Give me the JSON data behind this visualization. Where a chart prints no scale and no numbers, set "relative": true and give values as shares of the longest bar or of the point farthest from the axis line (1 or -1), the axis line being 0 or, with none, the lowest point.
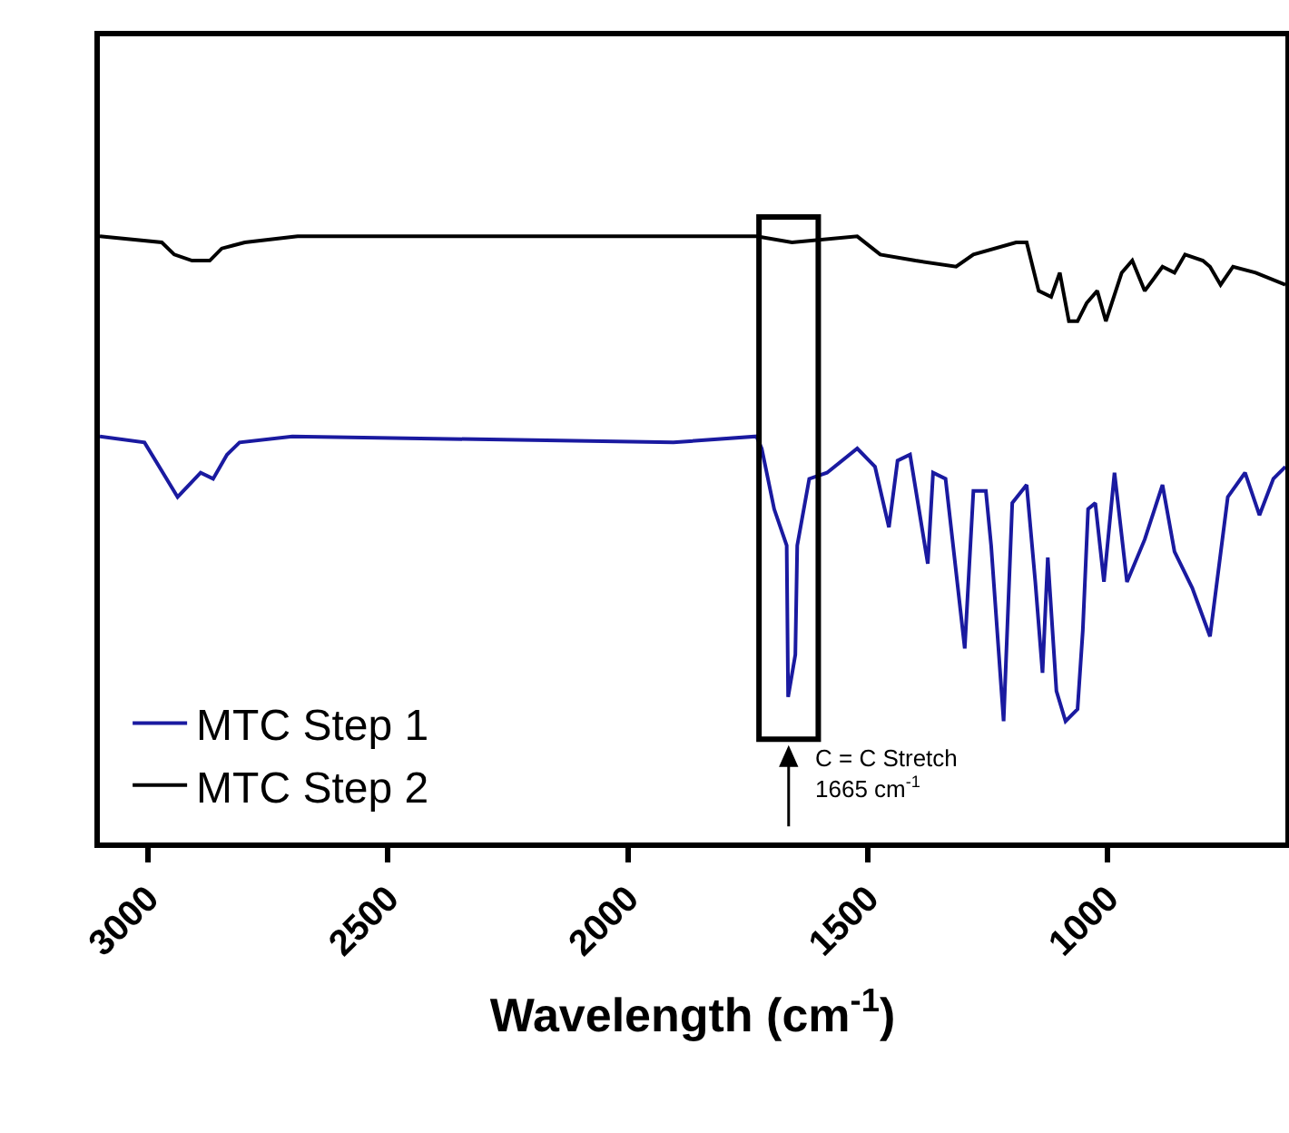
{
  "chart_data": {
    "type": "line",
    "relative": true,
    "xlabel": "Wavelength (cm$^{-1}$)",
    "xlim": [
      3100,
      630
    ],
    "xticks": [
      3000,
      2500,
      2000,
      1500,
      1000
    ],
    "tick_labels": "x",
    "legend": "bottom left",
    "annotations": [
      "C = C Stretch\n1665 cm$^{-1}$"
    ],
    "series": [
      {
        "name": "MTC Step 1",
        "color": "#1a1aa0",
        "x": [
          3100,
          3007,
          2938,
          2890,
          2864,
          2835,
          2809,
          2699,
          1905,
          1732,
          1721,
          1695,
          1669,
          1666,
          1651,
          1647,
          1622,
          1585,
          1522,
          1485,
          1456,
          1438,
          1412,
          1375,
          1364,
          1338,
          1298,
          1280,
          1254,
          1243,
          1217,
          1199,
          1169,
          1151,
          1136,
          1125,
          1107,
          1088,
          1063,
          1052,
          1041,
          1026,
          1008,
          986,
          960,
          923,
          886,
          861,
          824,
          787,
          750,
          714,
          684,
          655,
          630
        ],
        "values": [
          0.67,
          0.66,
          0.57,
          0.61,
          0.6,
          0.64,
          0.66,
          0.67,
          0.66,
          0.67,
          0.65,
          0.55,
          0.49,
          0.24,
          0.31,
          0.49,
          0.6,
          0.61,
          0.65,
          0.62,
          0.52,
          0.63,
          0.64,
          0.46,
          0.61,
          0.6,
          0.32,
          0.58,
          0.58,
          0.49,
          0.2,
          0.56,
          0.59,
          0.43,
          0.28,
          0.47,
          0.25,
          0.2,
          0.22,
          0.35,
          0.55,
          0.56,
          0.43,
          0.61,
          0.43,
          0.5,
          0.59,
          0.48,
          0.42,
          0.34,
          0.57,
          0.61,
          0.54,
          0.6,
          0.62
        ]
      },
      {
        "name": "MTC Step 2",
        "color": "#000000",
        "x": [
          3100,
          2971,
          2945,
          2908,
          2871,
          2846,
          2798,
          2688,
          1732,
          1658,
          1522,
          1474,
          1401,
          1316,
          1280,
          1191,
          1169,
          1144,
          1118,
          1100,
          1081,
          1063,
          1044,
          1022,
          1004,
          971,
          949,
          923,
          886,
          861,
          839,
          802,
          787,
          765,
          739,
          692,
          630
        ],
        "values": [
          1.0,
          0.99,
          0.97,
          0.96,
          0.96,
          0.98,
          0.99,
          1.0,
          1.0,
          0.99,
          1.0,
          0.97,
          0.96,
          0.95,
          0.97,
          0.99,
          0.99,
          0.91,
          0.9,
          0.94,
          0.86,
          0.86,
          0.89,
          0.91,
          0.86,
          0.94,
          0.96,
          0.91,
          0.95,
          0.94,
          0.97,
          0.96,
          0.95,
          0.92,
          0.95,
          0.94,
          0.92
        ]
      }
    ]
  }
}
